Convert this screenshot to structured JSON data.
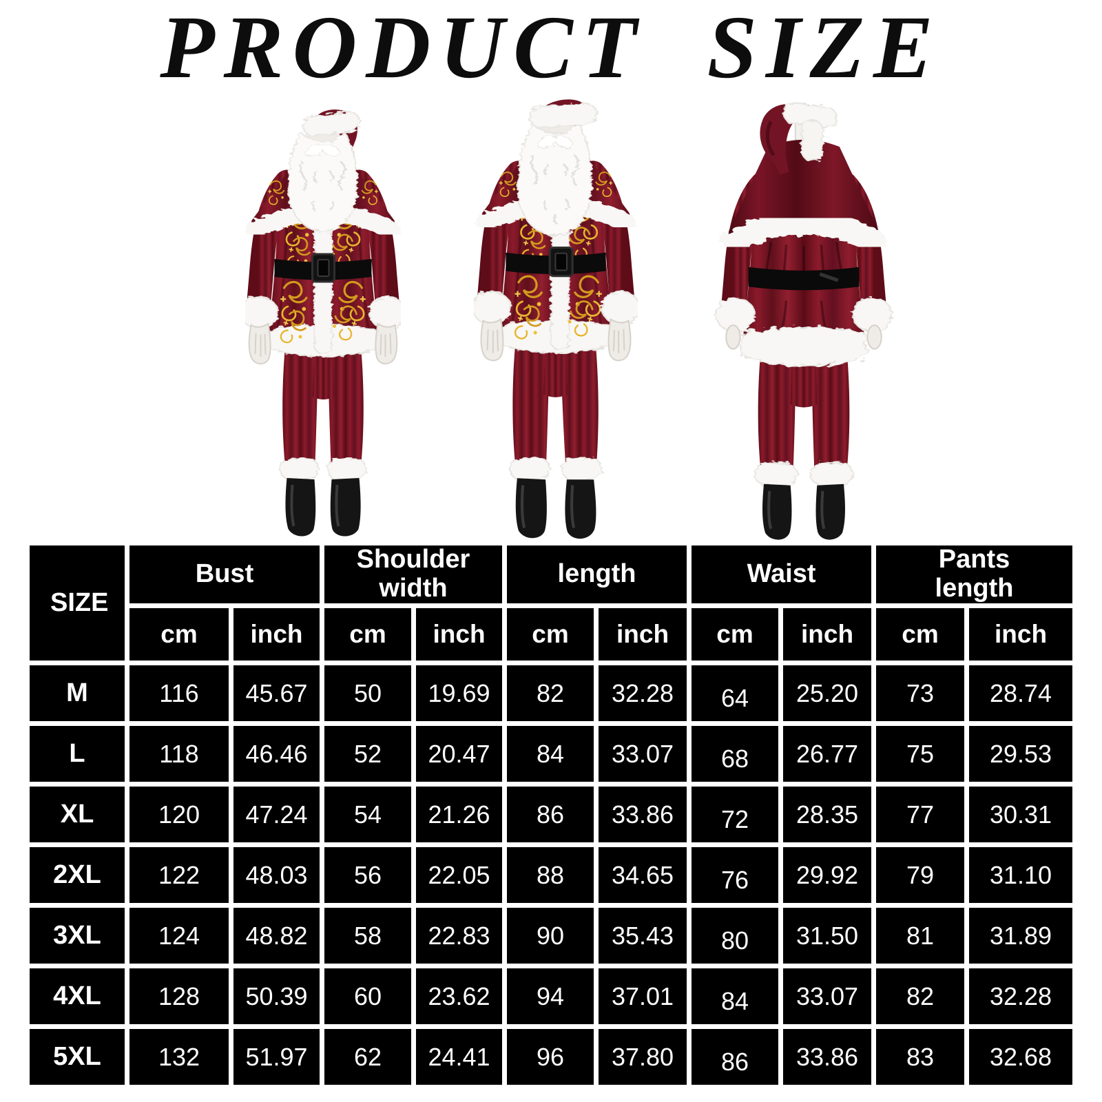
{
  "page": {
    "title": "PRODUCT SIZE"
  },
  "colors": {
    "suit_red": "#7a1425",
    "suit_red_dark": "#5e0c18",
    "fur_white": "#f8f7f5",
    "gold_embroidery": "#d8a01d",
    "belt_black": "#0b0b0b",
    "table_cell_bg": "#000000",
    "table_grid": "#ffffff",
    "table_text": "#ffffff",
    "title_color": "#0d0d0d"
  },
  "figures": [
    {
      "name": "santa-costume-front-view"
    },
    {
      "name": "santa-costume-side-view"
    },
    {
      "name": "santa-costume-back-view"
    }
  ],
  "size_table": {
    "corner_label": "SIZE",
    "groups": [
      {
        "label": "Bust"
      },
      {
        "label": "Shoulder width"
      },
      {
        "label": "length"
      },
      {
        "label": "Waist"
      },
      {
        "label": "Pants length"
      }
    ],
    "sub_headers": [
      "cm",
      "inch"
    ],
    "rows": [
      {
        "size": "M",
        "values": [
          "116",
          "45.67",
          "50",
          "19.69",
          "82",
          "32.28",
          "64",
          "25.20",
          "73",
          "28.74"
        ]
      },
      {
        "size": "L",
        "values": [
          "118",
          "46.46",
          "52",
          "20.47",
          "84",
          "33.07",
          "68",
          "26.77",
          "75",
          "29.53"
        ]
      },
      {
        "size": "XL",
        "values": [
          "120",
          "47.24",
          "54",
          "21.26",
          "86",
          "33.86",
          "72",
          "28.35",
          "77",
          "30.31"
        ]
      },
      {
        "size": "2XL",
        "values": [
          "122",
          "48.03",
          "56",
          "22.05",
          "88",
          "34.65",
          "76",
          "29.92",
          "79",
          "31.10"
        ]
      },
      {
        "size": "3XL",
        "values": [
          "124",
          "48.82",
          "58",
          "22.83",
          "90",
          "35.43",
          "80",
          "31.50",
          "81",
          "31.89"
        ]
      },
      {
        "size": "4XL",
        "values": [
          "128",
          "50.39",
          "60",
          "23.62",
          "94",
          "37.01",
          "84",
          "33.07",
          "82",
          "32.28"
        ]
      },
      {
        "size": "5XL",
        "values": [
          "132",
          "51.97",
          "62",
          "24.41",
          "96",
          "37.80",
          "86",
          "33.86",
          "83",
          "32.68"
        ]
      }
    ]
  },
  "chart_data": {
    "type": "table",
    "title": "PRODUCT SIZE",
    "columns": [
      "SIZE",
      "Bust cm",
      "Bust inch",
      "Shoulder width cm",
      "Shoulder width inch",
      "length cm",
      "length inch",
      "Waist cm",
      "Waist inch",
      "Pants length cm",
      "Pants length inch"
    ],
    "rows": [
      [
        "M",
        116,
        45.67,
        50,
        19.69,
        82,
        32.28,
        64,
        25.2,
        73,
        28.74
      ],
      [
        "L",
        118,
        46.46,
        52,
        20.47,
        84,
        33.07,
        68,
        26.77,
        75,
        29.53
      ],
      [
        "XL",
        120,
        47.24,
        54,
        21.26,
        86,
        33.86,
        72,
        28.35,
        77,
        30.31
      ],
      [
        "2XL",
        122,
        48.03,
        56,
        22.05,
        88,
        34.65,
        76,
        29.92,
        79,
        31.1
      ],
      [
        "3XL",
        124,
        48.82,
        58,
        22.83,
        90,
        35.43,
        80,
        31.5,
        81,
        31.89
      ],
      [
        "4XL",
        128,
        50.39,
        60,
        23.62,
        94,
        37.01,
        84,
        33.07,
        82,
        32.28
      ],
      [
        "5XL",
        132,
        51.97,
        62,
        24.41,
        96,
        37.8,
        86,
        33.86,
        83,
        32.68
      ]
    ]
  }
}
